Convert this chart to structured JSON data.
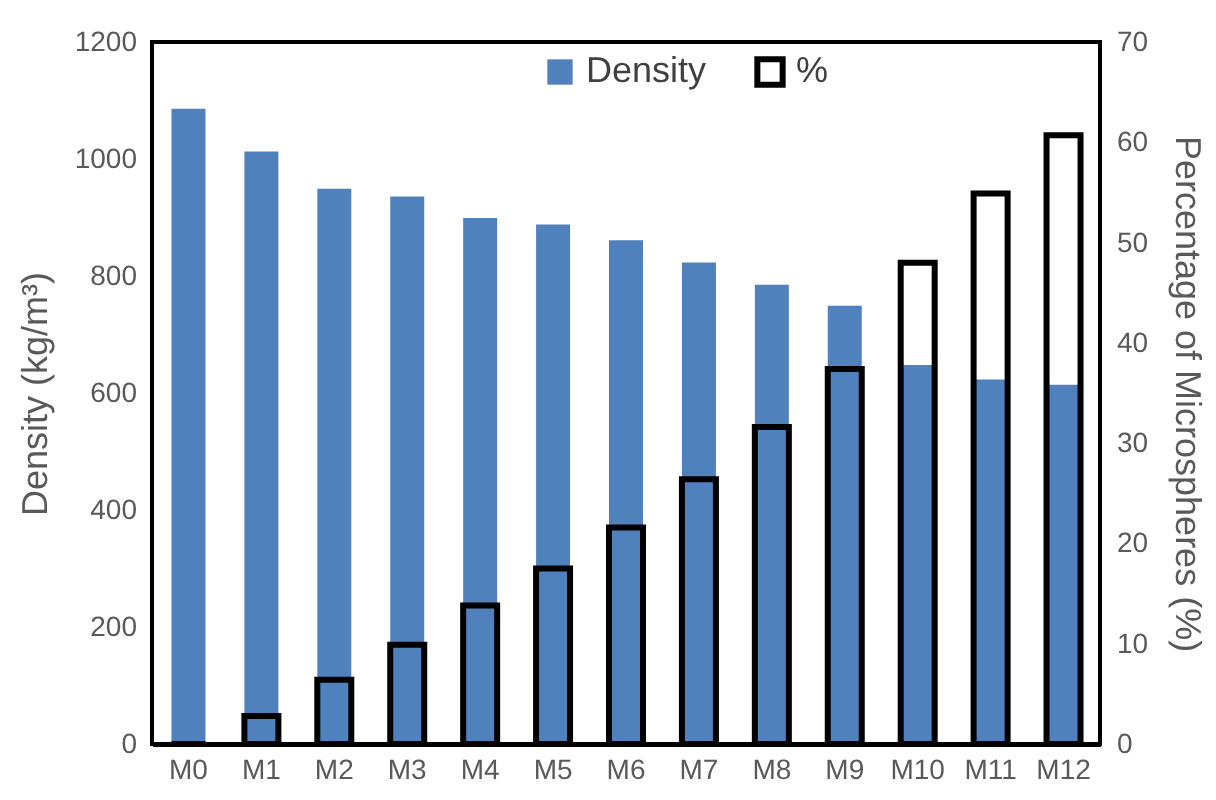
{
  "chart_data": {
    "type": "bar",
    "categories": [
      "M0",
      "M1",
      "M2",
      "M3",
      "M4",
      "M5",
      "M6",
      "M7",
      "M8",
      "M9",
      "M10",
      "M11",
      "M12"
    ],
    "series": [
      {
        "name": "Density",
        "color": "#4f81bd",
        "values": [
          1086,
          1013,
          949,
          936,
          899,
          888,
          861,
          823,
          785,
          749,
          648,
          623,
          614
        ]
      },
      {
        "name": "%",
        "color": "#000000",
        "axis": "y2",
        "values": [
          0,
          2.8,
          6.4,
          9.9,
          13.8,
          17.5,
          21.6,
          26.4,
          31.6,
          37.4,
          48.0,
          54.9,
          60.7
        ]
      }
    ],
    "ylabel": "Density (kg/m³)",
    "y2label": "Percentage of Microspheres (%)",
    "ylim": [
      0,
      1200
    ],
    "yticks": [
      0,
      200,
      400,
      600,
      800,
      1000,
      1200
    ],
    "y2lim": [
      0,
      70
    ],
    "y2ticks": [
      0,
      10,
      20,
      30,
      40,
      50,
      60,
      70
    ],
    "legend": "top",
    "grid": false
  }
}
